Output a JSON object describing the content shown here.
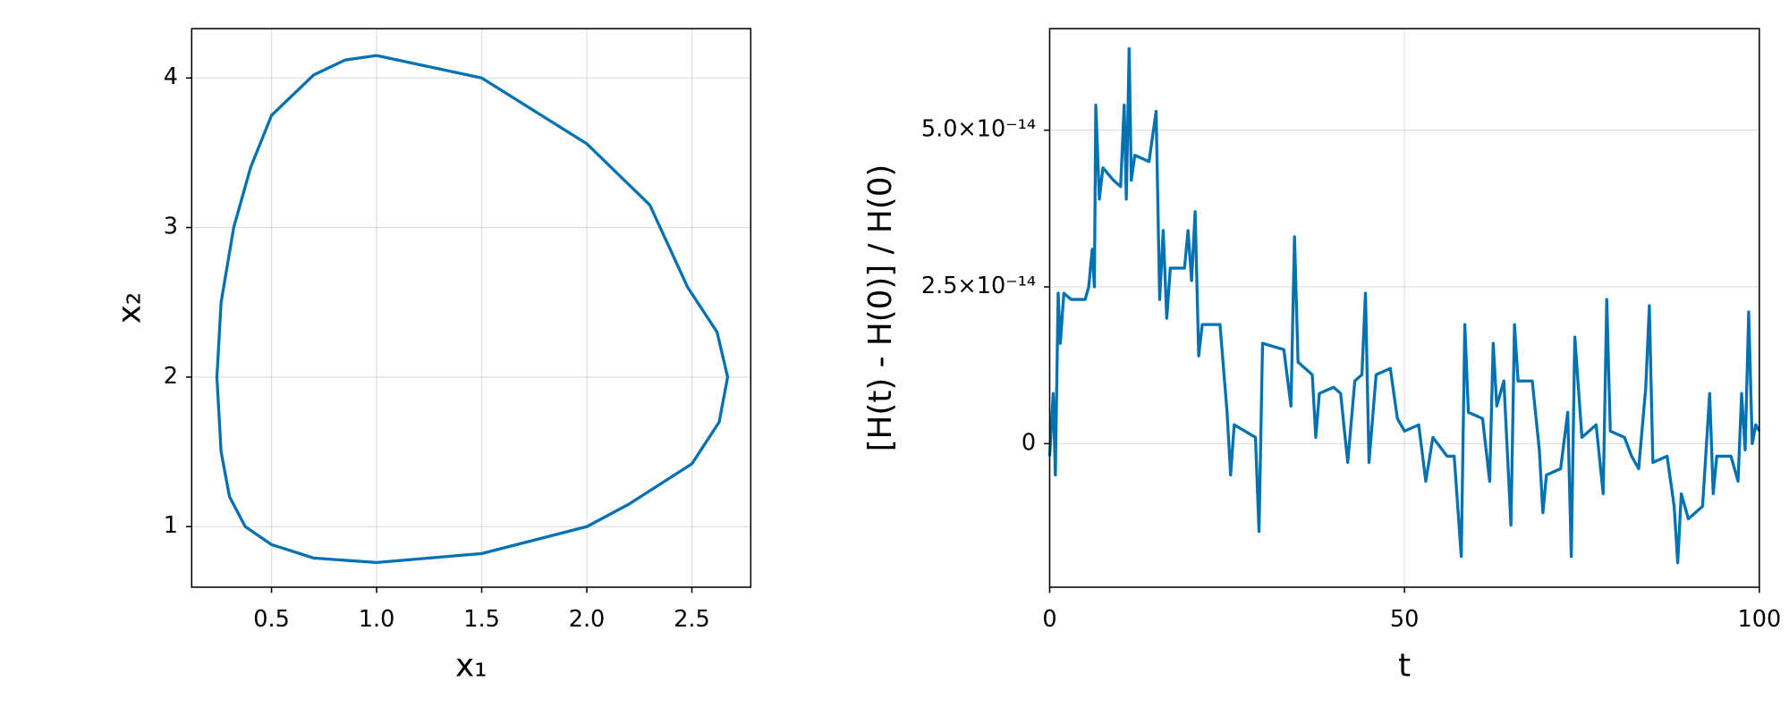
{
  "chart_data": [
    {
      "type": "line",
      "x_label": "x₁",
      "y_label": "x₂",
      "color": "#0072b2",
      "grid": true,
      "x": [
        1.0,
        1.5,
        2.0,
        2.3,
        2.48,
        2.62,
        2.67,
        2.63,
        2.5,
        2.2,
        2.0,
        1.5,
        1.0,
        0.7,
        0.5,
        0.375,
        0.3,
        0.26,
        0.24,
        0.26,
        0.32,
        0.4,
        0.5,
        0.7,
        0.85,
        1.0
      ],
      "values": [
        4.15,
        4.0,
        3.56,
        3.15,
        2.6,
        2.3,
        2.0,
        1.7,
        1.42,
        1.15,
        1.0,
        0.82,
        0.76,
        0.79,
        0.88,
        1.0,
        1.2,
        1.5,
        2.0,
        2.5,
        3.0,
        3.4,
        3.75,
        4.02,
        4.12,
        4.15
      ],
      "xlim": [
        0.12,
        2.78
      ],
      "ylim": [
        0.595,
        4.33
      ],
      "xticks": [
        0.5,
        {
          "value": 1.0,
          "label": "1.0"
        },
        1.5,
        {
          "value": 2.0,
          "label": "2.0"
        },
        2.5
      ],
      "yticks": [
        1,
        2,
        3,
        4
      ]
    },
    {
      "type": "line",
      "x_label": "t",
      "y_label": "[H(t) - H(0)] / H(0)",
      "color": "#0072b2",
      "grid": true,
      "x": [
        0,
        0.5,
        0.8,
        1.2,
        1.5,
        2,
        3,
        5,
        5.5,
        6,
        6.3,
        6.5,
        7,
        7.5,
        9,
        10,
        10.5,
        10.8,
        11.2,
        11.5,
        12,
        14,
        15,
        15.5,
        16,
        16.5,
        17,
        19,
        19.5,
        20,
        20.5,
        21,
        21.5,
        24,
        25,
        25.5,
        26,
        29,
        29.5,
        30,
        33,
        34,
        34.5,
        35,
        37,
        37.5,
        38,
        40,
        41,
        42,
        43,
        44,
        44.5,
        45,
        46,
        48,
        49,
        50,
        52,
        53,
        54,
        56,
        57,
        58,
        58.5,
        59,
        61,
        62,
        62.5,
        63,
        64,
        65,
        65.5,
        66,
        68,
        69,
        69.5,
        70,
        72,
        73,
        73.5,
        74,
        75,
        77,
        78,
        78.5,
        79,
        81,
        82,
        83,
        84,
        84.5,
        85,
        87,
        88,
        88.5,
        89,
        90,
        91,
        92,
        93,
        93.5,
        94,
        96,
        97,
        97.5,
        98,
        98.5,
        99,
        99.5,
        100
      ],
      "values": [
        -2e-15,
        8e-15,
        -5e-15,
        2.4e-14,
        1.6e-14,
        2.4e-14,
        2.3e-14,
        2.3e-14,
        2.5e-14,
        3.1e-14,
        2.5e-14,
        5.4e-14,
        3.9e-14,
        4.4e-14,
        4.2e-14,
        4.1e-14,
        5.4e-14,
        3.9e-14,
        6.3e-14,
        4.2e-14,
        4.6e-14,
        4.5e-14,
        5.3e-14,
        2.3e-14,
        3.4e-14,
        2e-14,
        2.8e-14,
        2.8e-14,
        3.4e-14,
        2.6e-14,
        3.7e-14,
        1.4e-14,
        1.9e-14,
        1.9e-14,
        5e-15,
        -5e-15,
        3e-15,
        1e-15,
        -1.4e-14,
        1.6e-14,
        1.5e-14,
        6e-15,
        3.3e-14,
        1.3e-14,
        1.1e-14,
        1e-15,
        8e-15,
        9e-15,
        8e-15,
        -3e-15,
        1e-14,
        1.1e-14,
        2.4e-14,
        -3e-15,
        1.1e-14,
        1.2e-14,
        4e-15,
        2e-15,
        3e-15,
        -6e-15,
        1e-15,
        -2e-15,
        -2e-15,
        -1.8e-14,
        1.9e-14,
        5e-15,
        4e-15,
        -6e-15,
        1.6e-14,
        6e-15,
        1e-14,
        -1.3e-14,
        1.9e-14,
        1e-14,
        1e-14,
        -1e-15,
        -1.1e-14,
        -5e-15,
        -4e-15,
        5e-15,
        -1.8e-14,
        1.7e-14,
        1e-15,
        3e-15,
        -8e-15,
        2.3e-14,
        2e-15,
        1e-15,
        -2e-15,
        -4e-15,
        9e-15,
        2.2e-14,
        -3e-15,
        -2e-15,
        -1e-14,
        -1.9e-14,
        -8e-15,
        -1.2e-14,
        -1.1e-14,
        -1e-14,
        8e-15,
        -8e-15,
        -2e-15,
        -2e-15,
        -6e-15,
        8e-15,
        -1e-15,
        2.1e-14,
        0.0,
        3e-15,
        2e-15
      ],
      "xlim": [
        0,
        100
      ],
      "ylim": [
        -2.29e-14,
        6.62e-14
      ],
      "xticks": [
        0,
        50,
        100
      ],
      "yticks": [
        0,
        {
          "value": 2.5e-14,
          "label": "2.5×10⁻¹⁴"
        },
        {
          "value": 5e-14,
          "label": "5.0×10⁻¹⁴"
        }
      ]
    }
  ]
}
